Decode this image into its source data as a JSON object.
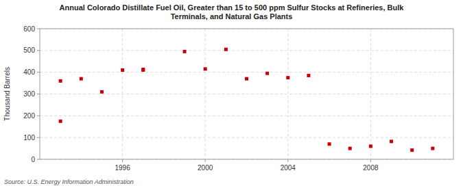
{
  "chart_data": {
    "type": "scatter",
    "title": "Annual Colorado Distillate Fuel Oil, Greater than 15 to 500 ppm Sulfur Stocks at Refineries, Bulk\nTerminals, and Natural Gas Plants",
    "y_label": "Thousand Barrels",
    "source": "Source: U.S. Energy Information Administration",
    "x": [
      1993,
      1993,
      1994,
      1995,
      1996,
      1997,
      1997,
      1999,
      2000,
      2001,
      2002,
      2003,
      2004,
      2005,
      2006,
      2007,
      2008,
      2009,
      2010,
      2011
    ],
    "values": [
      175,
      360,
      370,
      310,
      410,
      410,
      413,
      495,
      415,
      505,
      370,
      395,
      375,
      385,
      70,
      50,
      60,
      82,
      42,
      50
    ],
    "color": "#cc0000",
    "marker": "square",
    "xlim": [
      1992,
      2012
    ],
    "ylim": [
      0,
      600
    ],
    "xticks": [
      1996,
      2000,
      2004,
      2008
    ],
    "yticks": [
      0,
      100,
      200,
      300,
      400,
      500,
      600
    ],
    "grid": true
  }
}
